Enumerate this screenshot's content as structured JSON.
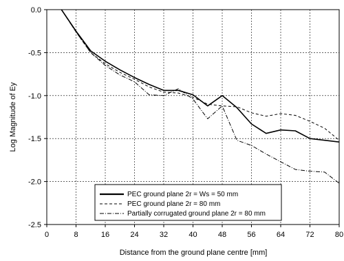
{
  "chart_data": {
    "type": "line",
    "title": "",
    "xlabel": "Distance from the ground plane centre [mm]",
    "ylabel": "Log Magnitude of Ey",
    "xlim": [
      0,
      80
    ],
    "ylim": [
      -2.5,
      0.0
    ],
    "xticks": [
      0,
      8,
      16,
      24,
      32,
      40,
      48,
      56,
      64,
      72,
      80
    ],
    "xtick_labels": [
      "0",
      "8",
      "16",
      "24",
      "32",
      "40",
      "48",
      "56",
      "64",
      "72",
      "80"
    ],
    "yticks": [
      0.0,
      -0.5,
      -1.0,
      -1.5,
      -2.0,
      -2.5
    ],
    "ytick_labels": [
      "0.0",
      "-0.5",
      "-1.0",
      "-1.5",
      "-2.0",
      "-2.5"
    ],
    "grid": true,
    "legend_position": "bottom-center",
    "series": [
      {
        "name": "PEC ground plane 2r = Ws = 50 mm",
        "style": "solid-thick",
        "x": [
          4,
          8,
          12,
          16,
          20,
          24,
          28,
          32,
          36,
          40,
          44,
          48,
          52,
          56,
          60,
          64,
          68,
          72,
          76,
          80
        ],
        "y": [
          0.0,
          -0.25,
          -0.48,
          -0.6,
          -0.7,
          -0.79,
          -0.87,
          -0.94,
          -0.94,
          -0.99,
          -1.12,
          -1.0,
          -1.14,
          -1.33,
          -1.44,
          -1.4,
          -1.41,
          -1.5,
          -1.52,
          -1.54
        ]
      },
      {
        "name": "PEC ground plane 2r = 80 mm",
        "style": "dashed",
        "x": [
          4,
          8,
          12,
          16,
          20,
          24,
          28,
          32,
          36,
          40,
          44,
          48,
          52,
          56,
          60,
          64,
          68,
          72,
          76,
          80
        ],
        "y": [
          0.0,
          -0.26,
          -0.5,
          -0.63,
          -0.73,
          -0.81,
          -0.9,
          -0.96,
          -0.97,
          -1.02,
          -1.1,
          -1.12,
          -1.13,
          -1.2,
          -1.24,
          -1.21,
          -1.23,
          -1.3,
          -1.38,
          -1.52
        ]
      },
      {
        "name": "Partially corrugated ground plane 2r = 80 mm",
        "style": "dash-dot",
        "x": [
          4,
          8,
          12,
          16,
          20,
          24,
          28,
          32,
          36,
          40,
          44,
          48,
          52,
          56,
          60,
          64,
          68,
          72,
          76,
          80
        ],
        "y": [
          0.0,
          -0.26,
          -0.5,
          -0.65,
          -0.76,
          -0.84,
          -0.99,
          -1.0,
          -0.92,
          -1.04,
          -1.27,
          -1.12,
          -1.52,
          -1.58,
          -1.68,
          -1.77,
          -1.86,
          -1.88,
          -1.89,
          -2.02
        ]
      }
    ]
  }
}
